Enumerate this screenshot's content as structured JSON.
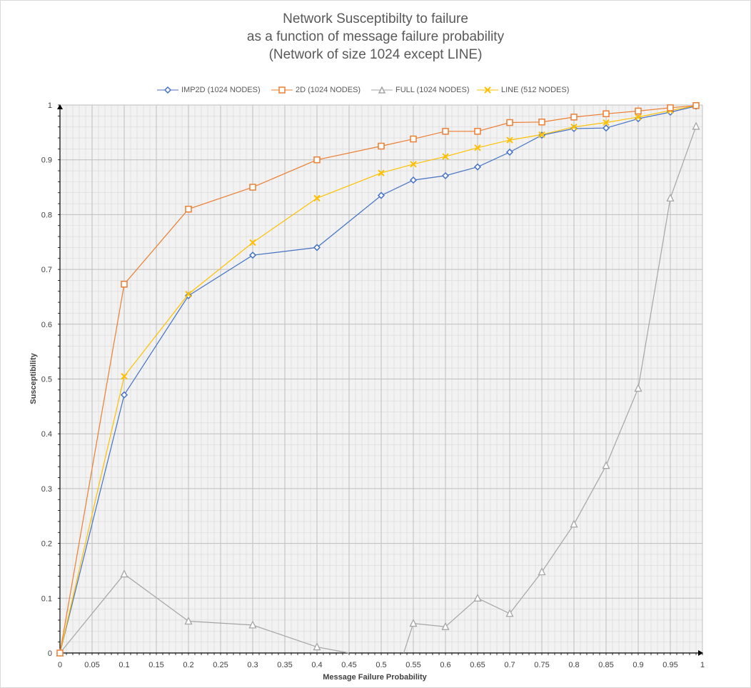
{
  "chart_data": {
    "type": "line",
    "title": [
      "Network Susceptibilty to failure",
      "as a function of message failure probability",
      "(Network of size 1024 except LINE)"
    ],
    "xlabel": "Message Failure Probability",
    "ylabel": "Susceptibility",
    "xlim": [
      0,
      1
    ],
    "ylim": [
      0,
      1
    ],
    "x_ticks": [
      "0",
      "0.05",
      "0.1",
      "0.15",
      "0.2",
      "0.25",
      "0.3",
      "0.35",
      "0.4",
      "0.45",
      "0.5",
      "0.55",
      "0.6",
      "0.65",
      "0.7",
      "0.75",
      "0.8",
      "0.85",
      "0.9",
      "0.95",
      "1"
    ],
    "y_ticks": [
      "0",
      "0.1",
      "0.2",
      "0.3",
      "0.4",
      "0.5",
      "0.6",
      "0.7",
      "0.8",
      "0.9",
      "1"
    ],
    "grid": true,
    "legend_position": "top",
    "series": [
      {
        "name": "IMP2D (1024 NODES)",
        "color": "#4472c4",
        "marker": "diamond",
        "x": [
          0,
          0.1,
          0.2,
          0.3,
          0.4,
          0.5,
          0.55,
          0.6,
          0.65,
          0.7,
          0.75,
          0.8,
          0.85,
          0.9,
          0.95,
          0.99
        ],
        "y": [
          0,
          0.471,
          0.652,
          0.726,
          0.74,
          0.835,
          0.863,
          0.871,
          0.887,
          0.914,
          0.945,
          0.957,
          0.958,
          0.975,
          0.987,
          0.998
        ]
      },
      {
        "name": "2D (1024 NODES)",
        "color": "#ed7d31",
        "marker": "square",
        "x": [
          0,
          0.1,
          0.2,
          0.3,
          0.4,
          0.5,
          0.55,
          0.6,
          0.65,
          0.7,
          0.75,
          0.8,
          0.85,
          0.9,
          0.95,
          0.99
        ],
        "y": [
          0,
          0.673,
          0.81,
          0.85,
          0.9,
          0.925,
          0.938,
          0.952,
          0.952,
          0.968,
          0.969,
          0.978,
          0.984,
          0.989,
          0.995,
          0.999
        ]
      },
      {
        "name": "FULL (1024 NODES)",
        "color": "#a5a5a5",
        "marker": "triangle",
        "x": [
          0,
          0.1,
          0.2,
          0.3,
          0.4,
          null,
          0.55,
          0.6,
          0.65,
          0.7,
          0.75,
          0.8,
          0.85,
          0.9,
          0.95,
          0.99
        ],
        "y": [
          0,
          0.144,
          0.058,
          0.051,
          0.011,
          null,
          0.054,
          0.048,
          0.1,
          0.072,
          0.148,
          0.235,
          0.342,
          0.483,
          0.83,
          0.961
        ]
      },
      {
        "name": "LINE (512 NODES)",
        "color": "#ffc000",
        "marker": "x",
        "x": [
          0,
          0.1,
          0.2,
          0.3,
          0.4,
          0.5,
          0.55,
          0.6,
          0.65,
          0.7,
          0.75,
          0.8,
          0.85,
          0.9,
          0.95,
          0.99
        ],
        "y": [
          0,
          0.505,
          0.655,
          0.749,
          0.83,
          0.876,
          0.892,
          0.906,
          0.922,
          0.936,
          0.946,
          0.96,
          0.968,
          0.978,
          0.99,
          0.999
        ]
      }
    ]
  }
}
